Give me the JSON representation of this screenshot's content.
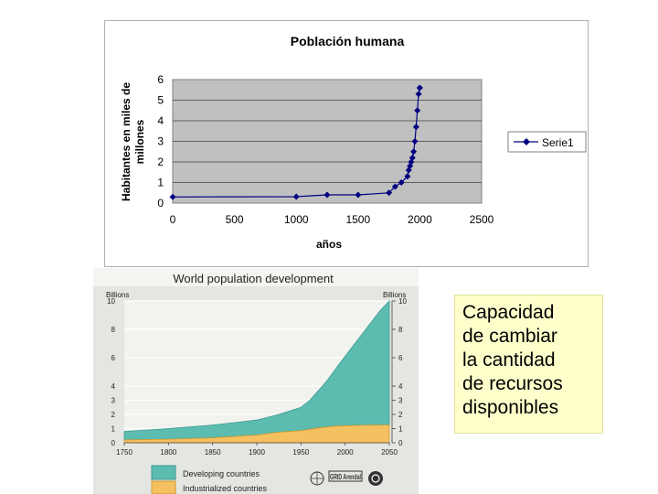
{
  "chart_data": [
    {
      "type": "line",
      "title": "Población humana",
      "xlabel": "años",
      "ylabel": "Habitantes en miles de millones",
      "xlim": [
        0,
        2500
      ],
      "ylim": [
        0,
        6
      ],
      "x_ticks": [
        0,
        500,
        1000,
        1500,
        2000,
        2500
      ],
      "y_ticks": [
        0,
        1,
        2,
        3,
        4,
        5,
        6
      ],
      "grid": true,
      "legend_position": "right",
      "series": [
        {
          "name": "Serie1",
          "color": "#000080",
          "x": [
            0,
            1000,
            1250,
            1500,
            1750,
            1800,
            1850,
            1900,
            1910,
            1920,
            1930,
            1940,
            1950,
            1960,
            1970,
            1980,
            1990,
            1999,
            2000
          ],
          "y": [
            0.3,
            0.31,
            0.4,
            0.4,
            0.5,
            0.8,
            1.0,
            1.3,
            1.6,
            1.8,
            2.0,
            2.2,
            2.5,
            3.0,
            3.7,
            4.5,
            5.3,
            5.6,
            5.6
          ]
        }
      ],
      "colors": {
        "plot_bg": "#c0c0c0",
        "marker": "#000080"
      }
    },
    {
      "type": "area",
      "title": "World population development",
      "ylabel_left": "Billions",
      "ylabel_right": "Billions",
      "xlim": [
        1750,
        2050
      ],
      "ylim": [
        0,
        10
      ],
      "x_ticks": [
        1750,
        1800,
        1850,
        1900,
        1950,
        2000,
        2050
      ],
      "y_ticks_left": [
        0,
        1,
        2,
        3,
        4,
        6,
        8,
        10
      ],
      "y_ticks_right": [
        0,
        1,
        2,
        3,
        4,
        6,
        8,
        10
      ],
      "x": [
        1750,
        1800,
        1850,
        1900,
        1925,
        1950,
        1960,
        1970,
        1980,
        1990,
        2000,
        2010,
        2020,
        2030,
        2040,
        2050
      ],
      "series": [
        {
          "name": "Industrialized countries",
          "color": "#f5c060",
          "values": [
            0.2,
            0.25,
            0.35,
            0.55,
            0.75,
            0.85,
            0.95,
            1.05,
            1.12,
            1.18,
            1.2,
            1.22,
            1.23,
            1.24,
            1.25,
            1.25
          ]
        },
        {
          "name": "Developing countries",
          "color": "#5cbcb0",
          "values": [
            0.6,
            0.75,
            0.9,
            1.05,
            1.25,
            1.65,
            2.05,
            2.65,
            3.3,
            4.1,
            4.9,
            5.7,
            6.5,
            7.3,
            8.1,
            8.75
          ]
        }
      ],
      "logo_text": "GRID Arendal"
    }
  ],
  "note": {
    "text": "Capacidad\nde cambiar\nla cantidad\nde recursos\ndisponibles"
  }
}
